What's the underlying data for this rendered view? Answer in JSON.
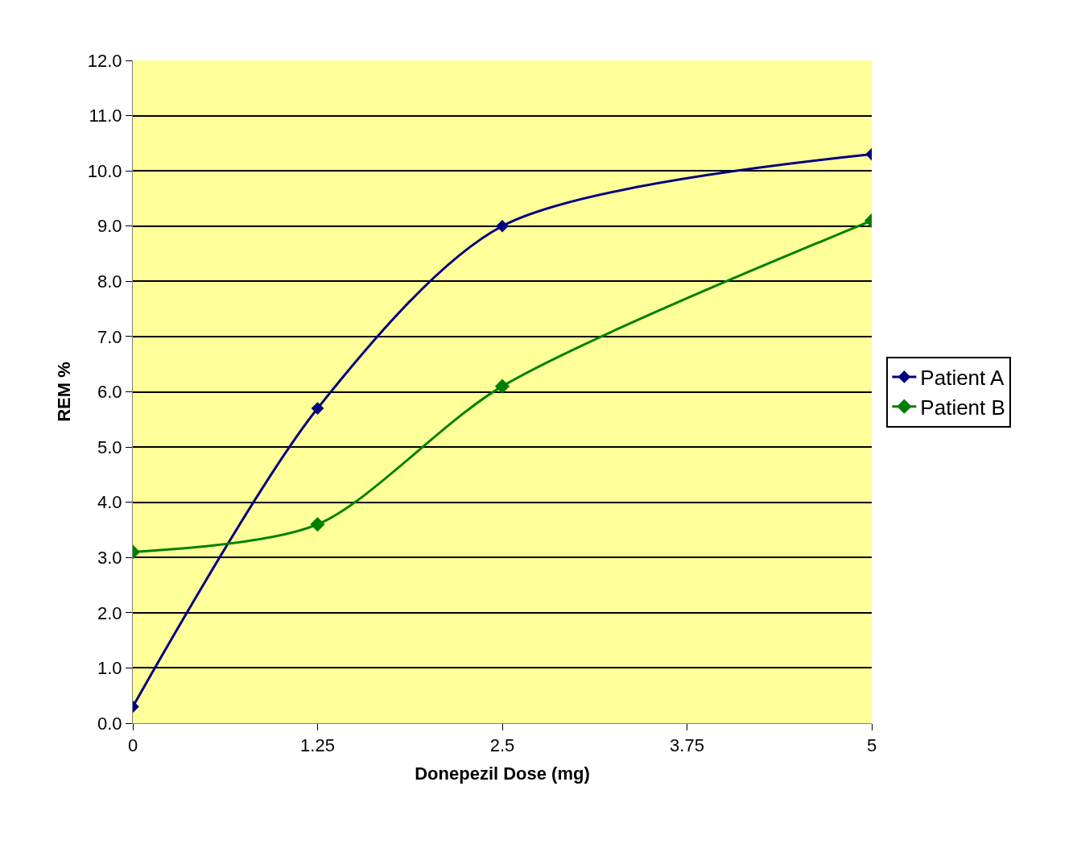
{
  "chart_data": {
    "type": "line",
    "xlabel": "Donepezil Dose (mg)",
    "ylabel": "REM %",
    "x": [
      0,
      1.25,
      2.5,
      5
    ],
    "series": [
      {
        "name": "Patient A",
        "color": "#000080",
        "values": [
          0.3,
          5.7,
          9.0,
          10.3
        ]
      },
      {
        "name": "Patient B",
        "color": "#008000",
        "values": [
          3.1,
          3.6,
          6.1,
          9.1
        ]
      }
    ],
    "xlim": [
      0,
      5
    ],
    "xticks": [
      0,
      1.25,
      2.5,
      3.75,
      5
    ],
    "ylim": [
      0,
      12
    ],
    "yticks": [
      {
        "value": 0,
        "label": "0.0"
      },
      {
        "value": 1,
        "label": "1.0"
      },
      {
        "value": 2,
        "label": "2.0"
      },
      {
        "value": 3,
        "label": "3.0"
      },
      {
        "value": 4,
        "label": "4.0"
      },
      {
        "value": 5,
        "label": "5.0"
      },
      {
        "value": 6,
        "label": "6.0"
      },
      {
        "value": 7,
        "label": "7.0"
      },
      {
        "value": 8,
        "label": "8.0"
      },
      {
        "value": 9,
        "label": "9.0"
      },
      {
        "value": 10,
        "label": "10.0"
      },
      {
        "value": 11,
        "label": "11.0"
      },
      {
        "value": 12,
        "label": "12.0"
      }
    ],
    "grid": "y",
    "legend": "right",
    "marker": "diamond",
    "line_style": "solid"
  }
}
